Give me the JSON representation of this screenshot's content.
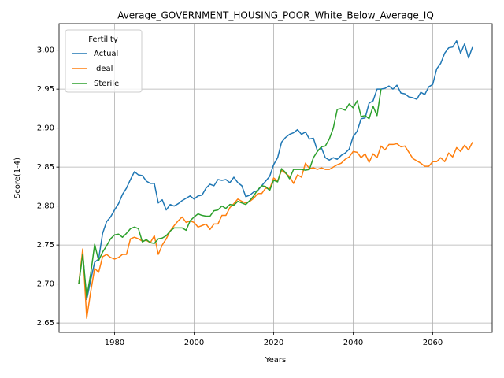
{
  "chart_data": {
    "type": "line",
    "title": "Average_GOVERNMENT_HOUSING_POOR_White_Below_Average_IQ",
    "xlabel": "Years",
    "ylabel": "Score(1-4)",
    "legend_title": "Fertility",
    "legend": "upper left",
    "grid": true,
    "x": [
      1971,
      1972,
      1973,
      1974,
      1975,
      1976,
      1977,
      1978,
      1979,
      1980,
      1981,
      1982,
      1983,
      1984,
      1985,
      1986,
      1987,
      1988,
      1989,
      1990,
      1991,
      1992,
      1993,
      1994,
      1995,
      1996,
      1997,
      1998,
      1999,
      2000,
      2001,
      2002,
      2003,
      2004,
      2005,
      2006,
      2007,
      2008,
      2009,
      2010,
      2011,
      2012,
      2013,
      2014,
      2015,
      2016,
      2017,
      2018,
      2019,
      2020,
      2021,
      2022,
      2023,
      2024,
      2025,
      2026,
      2027,
      2028,
      2029,
      2030,
      2031,
      2032,
      2033,
      2034,
      2035,
      2036,
      2037,
      2038,
      2039,
      2040,
      2041,
      2042,
      2043,
      2044,
      2045,
      2046,
      2047,
      2048,
      2049,
      2050,
      2051,
      2052,
      2053,
      2054,
      2055,
      2056,
      2057,
      2058,
      2059,
      2060,
      2061,
      2062,
      2063,
      2064,
      2065,
      2066,
      2067,
      2068,
      2069,
      2070
    ],
    "xlim": [
      1966.05,
      2074.95
    ],
    "xticks": [
      1980,
      2000,
      2020,
      2040,
      2060
    ],
    "ylim": [
      2.638,
      3.034
    ],
    "yticks": [
      2.65,
      {
        "value": 2.7,
        "label": "2.70"
      },
      2.75,
      {
        "value": 2.8,
        "label": "2.80"
      },
      2.85,
      {
        "value": 2.9,
        "label": "2.90"
      },
      2.95,
      {
        "value": 3.0,
        "label": "3.00"
      }
    ],
    "series": [
      {
        "name": "Actual",
        "color": "#1f77b4",
        "values": [
          2.7,
          2.74,
          2.68,
          2.705,
          2.728,
          2.732,
          2.765,
          2.78,
          2.786,
          2.795,
          2.803,
          2.815,
          2.823,
          2.834,
          2.844,
          2.84,
          2.839,
          2.832,
          2.829,
          2.829,
          2.804,
          2.808,
          2.795,
          2.802,
          2.8,
          2.803,
          2.807,
          2.81,
          2.813,
          2.809,
          2.813,
          2.814,
          2.823,
          2.828,
          2.826,
          2.834,
          2.833,
          2.834,
          2.83,
          2.837,
          2.83,
          2.826,
          2.812,
          2.814,
          2.818,
          2.82,
          2.826,
          2.832,
          2.838,
          2.853,
          2.862,
          2.882,
          2.888,
          2.892,
          2.894,
          2.898,
          2.892,
          2.895,
          2.886,
          2.887,
          2.871,
          2.875,
          2.862,
          2.859,
          2.862,
          2.86,
          2.865,
          2.868,
          2.873,
          2.889,
          2.896,
          2.912,
          2.913,
          2.932,
          2.935,
          2.95,
          2.95,
          2.951,
          2.954,
          2.95,
          2.955,
          2.945,
          2.944,
          2.94,
          2.939,
          2.937,
          2.946,
          2.943,
          2.953,
          2.956,
          2.976,
          2.983,
          2.996,
          3.003,
          3.004,
          3.012,
          2.996,
          3.008,
          2.99,
          3.004
        ]
      },
      {
        "name": "Ideal",
        "color": "#ff7f0e",
        "values": [
          2.7,
          2.745,
          2.656,
          2.69,
          2.72,
          2.715,
          2.735,
          2.738,
          2.734,
          2.732,
          2.734,
          2.738,
          2.738,
          2.758,
          2.76,
          2.758,
          2.755,
          2.756,
          2.753,
          2.762,
          2.738,
          2.75,
          2.758,
          2.768,
          2.775,
          2.781,
          2.786,
          2.779,
          2.781,
          2.779,
          2.773,
          2.775,
          2.777,
          2.77,
          2.777,
          2.777,
          2.788,
          2.788,
          2.798,
          2.803,
          2.809,
          2.806,
          2.804,
          2.806,
          2.81,
          2.816,
          2.816,
          2.823,
          2.822,
          2.836,
          2.832,
          2.846,
          2.842,
          2.838,
          2.829,
          2.84,
          2.837,
          2.855,
          2.848,
          2.849,
          2.847,
          2.849,
          2.847,
          2.847,
          2.85,
          2.853,
          2.855,
          2.86,
          2.863,
          2.87,
          2.869,
          2.862,
          2.867,
          2.856,
          2.867,
          2.862,
          2.877,
          2.872,
          2.879,
          2.879,
          2.88,
          2.876,
          2.877,
          2.869,
          2.861,
          2.858,
          2.855,
          2.851,
          2.851,
          2.857,
          2.857,
          2.862,
          2.857,
          2.868,
          2.863,
          2.875,
          2.87,
          2.878,
          2.872,
          2.882
        ]
      },
      {
        "name": "Sterile",
        "color": "#2ca02c",
        "values": [
          2.7,
          2.738,
          2.683,
          2.713,
          2.751,
          2.73,
          2.741,
          2.749,
          2.758,
          2.763,
          2.764,
          2.76,
          2.765,
          2.771,
          2.773,
          2.771,
          2.754,
          2.757,
          2.753,
          2.752,
          2.758,
          2.759,
          2.762,
          2.768,
          2.772,
          2.772,
          2.772,
          2.769,
          2.781,
          2.786,
          2.79,
          2.788,
          2.787,
          2.787,
          2.794,
          2.795,
          2.8,
          2.797,
          2.802,
          2.801,
          2.806,
          2.804,
          2.802,
          2.807,
          2.813,
          2.821,
          2.826,
          2.825,
          2.82,
          2.833,
          2.831,
          2.848,
          2.843,
          2.835,
          2.847,
          2.847,
          2.847,
          2.846,
          2.847,
          2.862,
          2.87,
          2.876,
          2.877,
          2.886,
          2.9,
          2.924,
          2.925,
          2.923,
          2.931,
          2.926,
          2.935,
          2.915,
          2.916,
          2.912,
          2.928,
          2.916,
          2.95,
          null,
          null,
          null,
          null,
          null,
          null,
          null,
          null,
          null,
          null,
          null,
          null,
          null,
          null,
          null,
          null,
          null,
          null,
          null,
          null,
          null,
          null,
          null
        ]
      }
    ]
  }
}
